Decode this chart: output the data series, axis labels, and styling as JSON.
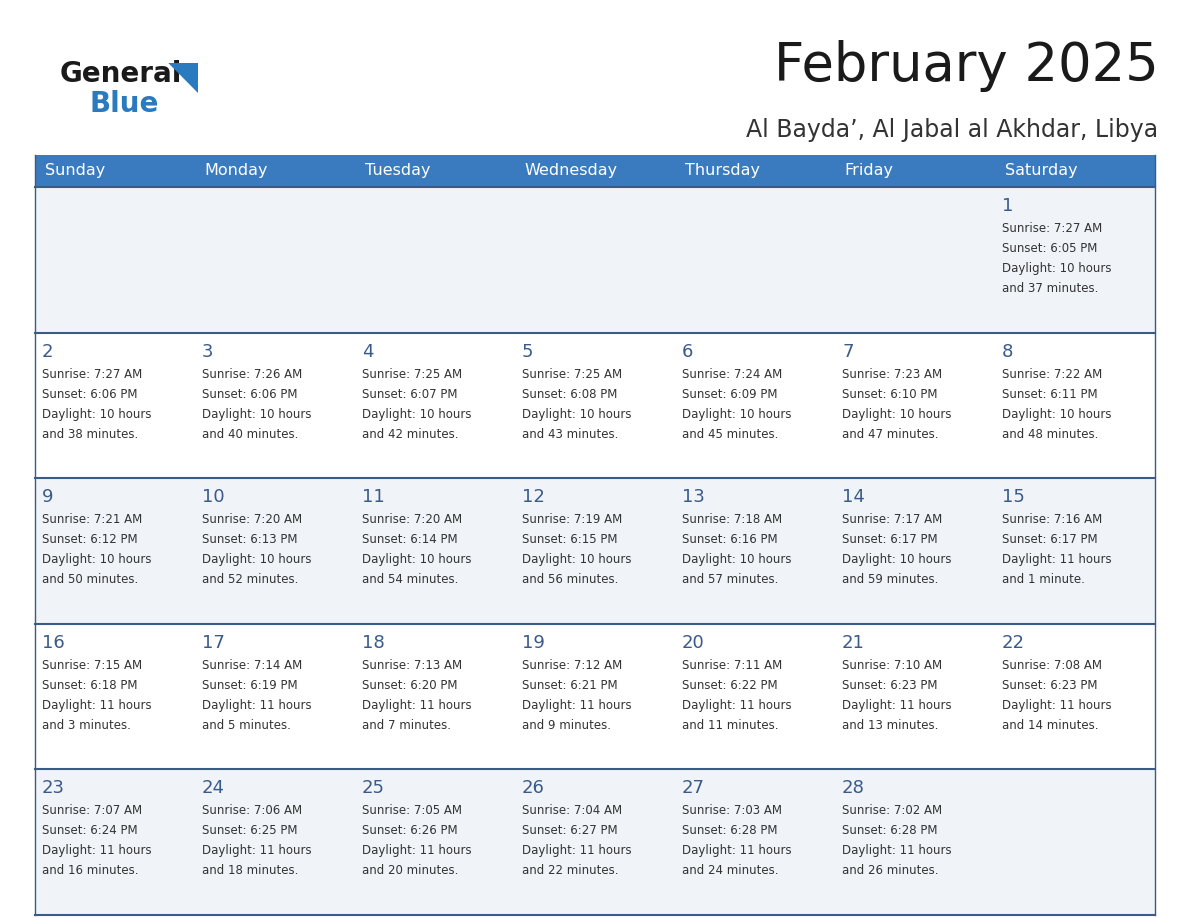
{
  "title": "February 2025",
  "subtitle": "Al Bayda’, Al Jabal al Akhdar, Libya",
  "header_color": "#3a7abf",
  "header_text_color": "#ffffff",
  "cell_bg_even": "#f0f4f8",
  "cell_bg_odd": "#ffffff",
  "day_number_color": "#3a5a8a",
  "text_color": "#333333",
  "line_color": "#3a5a8a",
  "days_of_week": [
    "Sunday",
    "Monday",
    "Tuesday",
    "Wednesday",
    "Thursday",
    "Friday",
    "Saturday"
  ],
  "weeks": [
    [
      {
        "day": null,
        "sunrise": null,
        "sunset": null,
        "daylight": null
      },
      {
        "day": null,
        "sunrise": null,
        "sunset": null,
        "daylight": null
      },
      {
        "day": null,
        "sunrise": null,
        "sunset": null,
        "daylight": null
      },
      {
        "day": null,
        "sunrise": null,
        "sunset": null,
        "daylight": null
      },
      {
        "day": null,
        "sunrise": null,
        "sunset": null,
        "daylight": null
      },
      {
        "day": null,
        "sunrise": null,
        "sunset": null,
        "daylight": null
      },
      {
        "day": 1,
        "sunrise": "7:27 AM",
        "sunset": "6:05 PM",
        "daylight": "10 hours\nand 37 minutes."
      }
    ],
    [
      {
        "day": 2,
        "sunrise": "7:27 AM",
        "sunset": "6:06 PM",
        "daylight": "10 hours\nand 38 minutes."
      },
      {
        "day": 3,
        "sunrise": "7:26 AM",
        "sunset": "6:06 PM",
        "daylight": "10 hours\nand 40 minutes."
      },
      {
        "day": 4,
        "sunrise": "7:25 AM",
        "sunset": "6:07 PM",
        "daylight": "10 hours\nand 42 minutes."
      },
      {
        "day": 5,
        "sunrise": "7:25 AM",
        "sunset": "6:08 PM",
        "daylight": "10 hours\nand 43 minutes."
      },
      {
        "day": 6,
        "sunrise": "7:24 AM",
        "sunset": "6:09 PM",
        "daylight": "10 hours\nand 45 minutes."
      },
      {
        "day": 7,
        "sunrise": "7:23 AM",
        "sunset": "6:10 PM",
        "daylight": "10 hours\nand 47 minutes."
      },
      {
        "day": 8,
        "sunrise": "7:22 AM",
        "sunset": "6:11 PM",
        "daylight": "10 hours\nand 48 minutes."
      }
    ],
    [
      {
        "day": 9,
        "sunrise": "7:21 AM",
        "sunset": "6:12 PM",
        "daylight": "10 hours\nand 50 minutes."
      },
      {
        "day": 10,
        "sunrise": "7:20 AM",
        "sunset": "6:13 PM",
        "daylight": "10 hours\nand 52 minutes."
      },
      {
        "day": 11,
        "sunrise": "7:20 AM",
        "sunset": "6:14 PM",
        "daylight": "10 hours\nand 54 minutes."
      },
      {
        "day": 12,
        "sunrise": "7:19 AM",
        "sunset": "6:15 PM",
        "daylight": "10 hours\nand 56 minutes."
      },
      {
        "day": 13,
        "sunrise": "7:18 AM",
        "sunset": "6:16 PM",
        "daylight": "10 hours\nand 57 minutes."
      },
      {
        "day": 14,
        "sunrise": "7:17 AM",
        "sunset": "6:17 PM",
        "daylight": "10 hours\nand 59 minutes."
      },
      {
        "day": 15,
        "sunrise": "7:16 AM",
        "sunset": "6:17 PM",
        "daylight": "11 hours\nand 1 minute."
      }
    ],
    [
      {
        "day": 16,
        "sunrise": "7:15 AM",
        "sunset": "6:18 PM",
        "daylight": "11 hours\nand 3 minutes."
      },
      {
        "day": 17,
        "sunrise": "7:14 AM",
        "sunset": "6:19 PM",
        "daylight": "11 hours\nand 5 minutes."
      },
      {
        "day": 18,
        "sunrise": "7:13 AM",
        "sunset": "6:20 PM",
        "daylight": "11 hours\nand 7 minutes."
      },
      {
        "day": 19,
        "sunrise": "7:12 AM",
        "sunset": "6:21 PM",
        "daylight": "11 hours\nand 9 minutes."
      },
      {
        "day": 20,
        "sunrise": "7:11 AM",
        "sunset": "6:22 PM",
        "daylight": "11 hours\nand 11 minutes."
      },
      {
        "day": 21,
        "sunrise": "7:10 AM",
        "sunset": "6:23 PM",
        "daylight": "11 hours\nand 13 minutes."
      },
      {
        "day": 22,
        "sunrise": "7:08 AM",
        "sunset": "6:23 PM",
        "daylight": "11 hours\nand 14 minutes."
      }
    ],
    [
      {
        "day": 23,
        "sunrise": "7:07 AM",
        "sunset": "6:24 PM",
        "daylight": "11 hours\nand 16 minutes."
      },
      {
        "day": 24,
        "sunrise": "7:06 AM",
        "sunset": "6:25 PM",
        "daylight": "11 hours\nand 18 minutes."
      },
      {
        "day": 25,
        "sunrise": "7:05 AM",
        "sunset": "6:26 PM",
        "daylight": "11 hours\nand 20 minutes."
      },
      {
        "day": 26,
        "sunrise": "7:04 AM",
        "sunset": "6:27 PM",
        "daylight": "11 hours\nand 22 minutes."
      },
      {
        "day": 27,
        "sunrise": "7:03 AM",
        "sunset": "6:28 PM",
        "daylight": "11 hours\nand 24 minutes."
      },
      {
        "day": 28,
        "sunrise": "7:02 AM",
        "sunset": "6:28 PM",
        "daylight": "11 hours\nand 26 minutes."
      },
      {
        "day": null,
        "sunrise": null,
        "sunset": null,
        "daylight": null
      }
    ]
  ],
  "figsize": [
    11.88,
    9.18
  ],
  "dpi": 100
}
